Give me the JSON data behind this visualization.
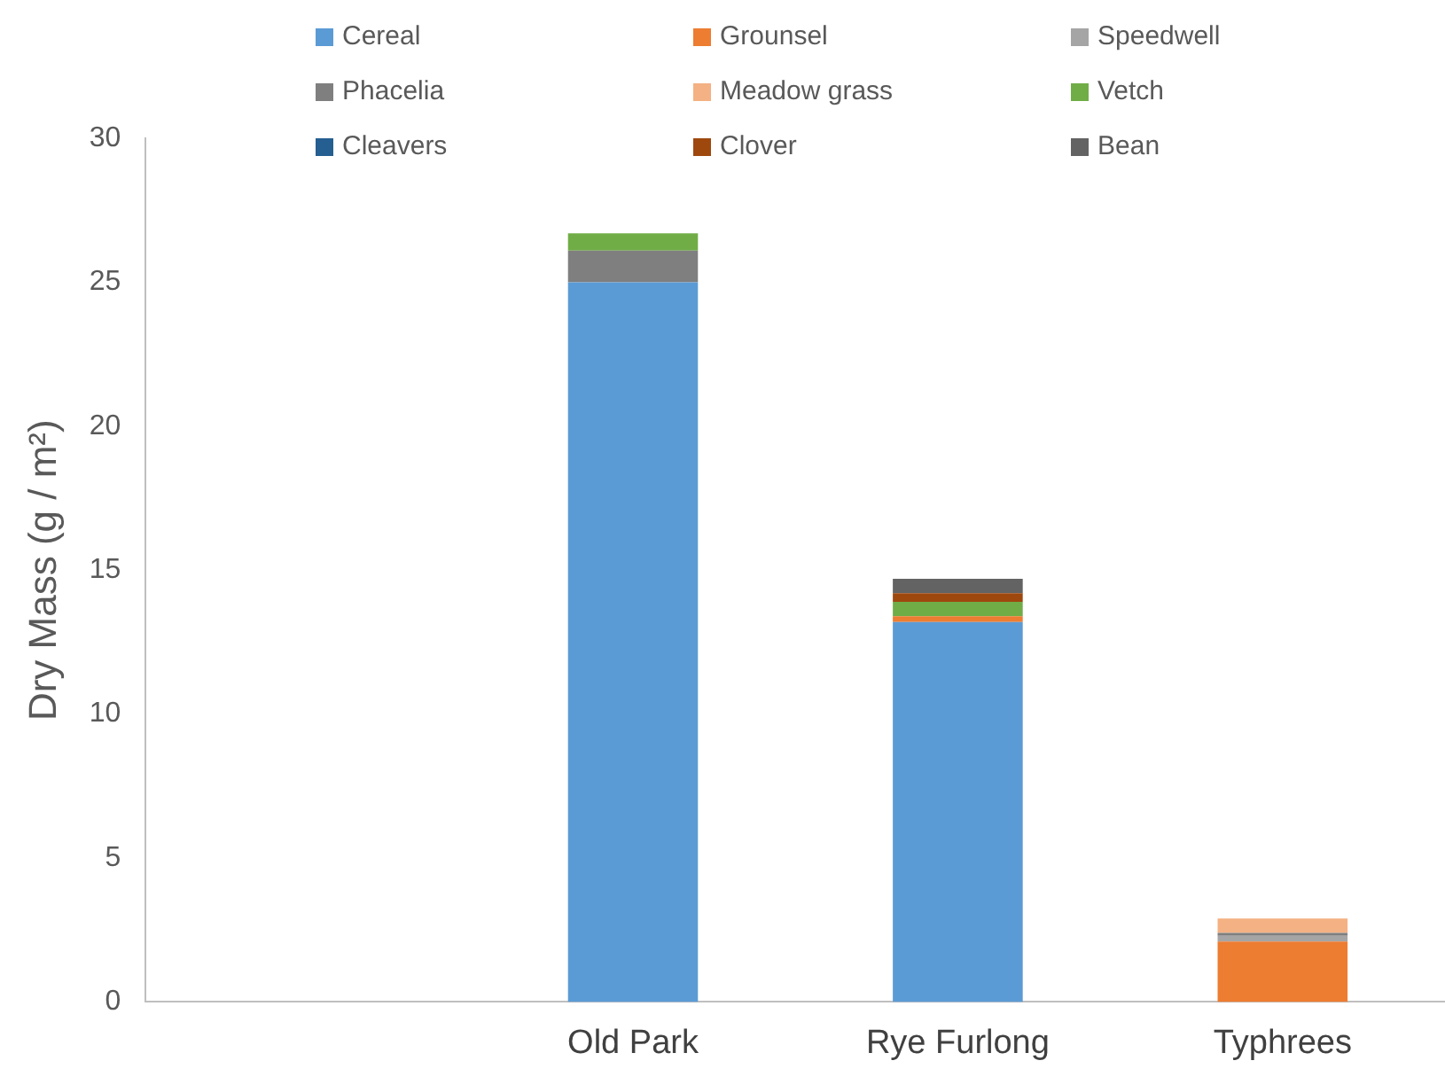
{
  "chart_data": {
    "type": "bar",
    "stacked": true,
    "ylabel": "Dry Mass (g / m²)",
    "categories": [
      null,
      "Old Park",
      "Rye Furlong",
      "Typhrees"
    ],
    "ylim": [
      0,
      30
    ],
    "yticks": [
      0,
      5,
      10,
      15,
      20,
      25,
      30
    ],
    "grid": false,
    "legend": "top",
    "series": [
      {
        "name": "Cereal",
        "color": "#5b9bd5",
        "values": [
          null,
          25,
          13.2,
          null
        ]
      },
      {
        "name": "Grounsel",
        "color": "#ed7d31",
        "values": [
          null,
          null,
          0.2,
          2.1
        ]
      },
      {
        "name": "Speedwell",
        "color": "#a5a5a5",
        "values": [
          null,
          null,
          null,
          0.2
        ]
      },
      {
        "name": "Phacelia",
        "color": "#7f7f7f",
        "values": [
          null,
          1.1,
          null,
          0.1
        ]
      },
      {
        "name": "Meadow grass",
        "color": "#f4b183",
        "values": [
          null,
          null,
          null,
          0.5
        ]
      },
      {
        "name": "Vetch",
        "color": "#70ad47",
        "values": [
          null,
          0.6,
          0.5,
          null
        ]
      },
      {
        "name": "Cleavers",
        "color": "#255e91",
        "values": [
          null,
          null,
          null,
          null
        ]
      },
      {
        "name": "Clover",
        "color": "#9e480e",
        "values": [
          null,
          null,
          0.3,
          null
        ]
      },
      {
        "name": "Bean",
        "color": "#636363",
        "values": [
          null,
          null,
          0.5,
          null
        ]
      }
    ]
  }
}
